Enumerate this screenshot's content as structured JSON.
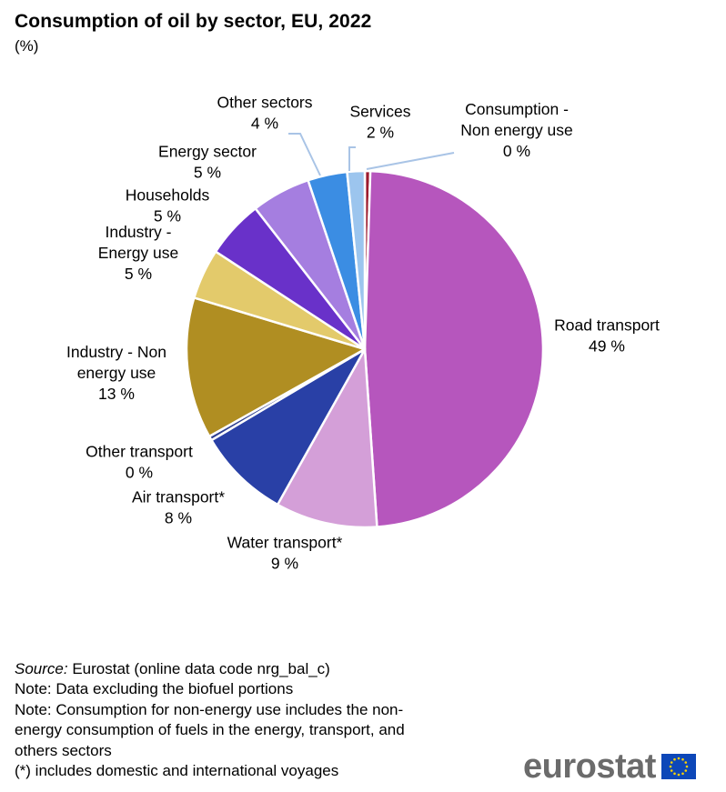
{
  "title": "Consumption of oil by sector, EU, 2022",
  "subtitle": "(%)",
  "chart_data": {
    "type": "pie",
    "title": "Consumption of oil by sector, EU, 2022",
    "unit": "%",
    "start_angle_deg": 0,
    "direction": "clockwise",
    "slices": [
      {
        "name": "Consumption - Non energy use",
        "value": 0.5,
        "label_lines": [
          "Consumption -",
          "Non energy use"
        ],
        "value_label": "0 %",
        "color": "#9c1b2e"
      },
      {
        "name": "Road transport",
        "value": 48.8,
        "label_lines": [
          "Road transport"
        ],
        "value_label": "49 %",
        "color": "#b656bd"
      },
      {
        "name": "Water transport*",
        "value": 9.3,
        "label_lines": [
          "Water transport*"
        ],
        "value_label": "9 %",
        "color": "#d49fd8"
      },
      {
        "name": "Air transport*",
        "value": 8.4,
        "label_lines": [
          "Air transport*"
        ],
        "value_label": "8 %",
        "color": "#2940a6"
      },
      {
        "name": "Other transport",
        "value": 0.4,
        "label_lines": [
          "Other transport"
        ],
        "value_label": "0 %",
        "color": "#2e3f91"
      },
      {
        "name": "Industry - Non energy use",
        "value": 12.9,
        "label_lines": [
          "Industry - Non",
          "energy use"
        ],
        "value_label": "13 %",
        "color": "#b08e22"
      },
      {
        "name": "Industry - Energy use",
        "value": 4.6,
        "label_lines": [
          "Industry -",
          "Energy use"
        ],
        "value_label": "5 %",
        "color": "#e3ca6b"
      },
      {
        "name": "Households",
        "value": 5.3,
        "label_lines": [
          "Households"
        ],
        "value_label": "5 %",
        "color": "#6931c9"
      },
      {
        "name": "Energy sector",
        "value": 5.4,
        "label_lines": [
          "Energy sector"
        ],
        "value_label": "5 %",
        "color": "#a57ee0"
      },
      {
        "name": "Other sectors",
        "value": 3.6,
        "label_lines": [
          "Other sectors"
        ],
        "value_label": "4 %",
        "color": "#3b8de3"
      },
      {
        "name": "Services",
        "value": 1.6,
        "label_lines": [
          "Services"
        ],
        "value_label": "2 %",
        "color": "#9cc5ee"
      }
    ]
  },
  "notes": {
    "source_label": "Source:",
    "source_text": " Eurostat (online data code nrg_bal_c)",
    "lines": [
      "Note: Data excluding  the biofuel portions",
      "Note: Consumption  for non-energy use includes the non-",
      "energy consumption  of fuels in the energy, transport, and",
      "others sectors",
      "(*) includes domestic and international voyages"
    ]
  },
  "logo": {
    "text": "eurostat",
    "flag_color": "#0d47b8",
    "star_color": "#ffd200"
  }
}
